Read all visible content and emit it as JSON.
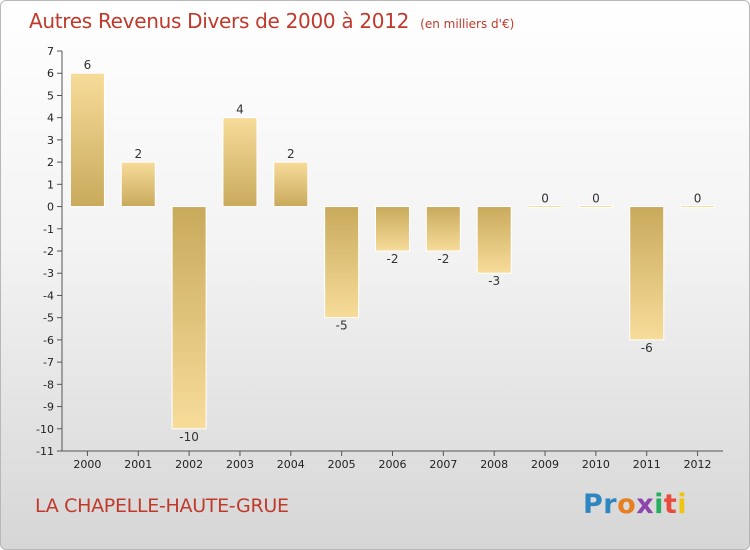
{
  "header": {
    "title": "Autres Revenus Divers de 2000 à 2012",
    "subtitle": "(en milliers d'€)"
  },
  "footer": {
    "commune": "LA CHAPELLE-HAUTE-GRUE",
    "logo_letters": [
      {
        "char": "P",
        "color": "#2e86c1"
      },
      {
        "char": "r",
        "color": "#2e86c1"
      },
      {
        "char": "o",
        "color": "#e67e22"
      },
      {
        "char": "x",
        "color": "#8e44ad"
      },
      {
        "char": "i",
        "color": "#27ae60"
      },
      {
        "char": "t",
        "color": "#e74c3c"
      },
      {
        "char": "i",
        "color": "#f1c40f"
      }
    ]
  },
  "colors": {
    "bar_light": "#f7dc9a",
    "bar_dark": "#c9aa5c",
    "title": "#c0392b"
  },
  "chart_data": {
    "type": "bar",
    "categories": [
      "2000",
      "2001",
      "2002",
      "2003",
      "2004",
      "2005",
      "2006",
      "2007",
      "2008",
      "2009",
      "2010",
      "2011",
      "2012"
    ],
    "values": [
      6,
      2,
      -10,
      4,
      2,
      -5,
      -2,
      -2,
      -3,
      0,
      0,
      -6,
      0
    ],
    "value_labels": [
      "6",
      "2",
      "-10",
      "4",
      "2",
      "-5",
      "-2",
      "-2",
      "-3",
      "0",
      "0",
      "-6",
      "0"
    ],
    "ylim": [
      -11,
      7
    ],
    "yticks": [
      7,
      6,
      5,
      4,
      3,
      2,
      1,
      0,
      -1,
      -2,
      -3,
      -4,
      -5,
      -6,
      -7,
      -8,
      -9,
      -10,
      -11
    ],
    "ytick_labels": [
      "7",
      "6",
      "5",
      "4",
      "3",
      "2",
      "1",
      "0",
      "-1",
      "-2",
      "-3",
      "-4",
      "-5",
      "-6",
      "-7",
      "-8",
      "-9",
      "-10",
      "-11"
    ],
    "grid": false,
    "legend": "none"
  }
}
